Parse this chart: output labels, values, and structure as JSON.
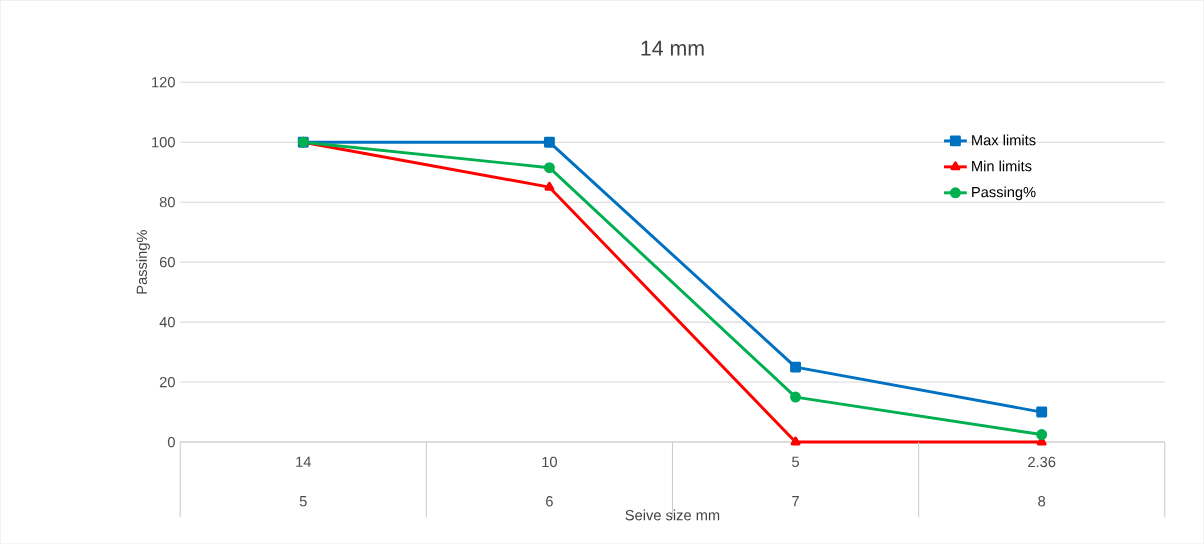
{
  "chart_data": {
    "type": "line",
    "title": "14 mm",
    "xlabel": "Seive size mm",
    "ylabel": "Passing%",
    "categories": [
      "14",
      "10",
      "5",
      "2.36"
    ],
    "annotations": [
      "5",
      "6",
      "7",
      "8"
    ],
    "series": [
      {
        "name": "Max limits",
        "color": "#0070c0",
        "marker": "square",
        "values": [
          100,
          100,
          25,
          10
        ]
      },
      {
        "name": "Min limits",
        "color": "#ff0000",
        "marker": "triangle",
        "values": [
          100,
          85,
          0,
          0
        ]
      },
      {
        "name": "Passing%",
        "color": "#00b050",
        "marker": "circle",
        "values": [
          100,
          91.5,
          15,
          2.5
        ]
      }
    ],
    "ylim": [
      0,
      120
    ],
    "yticks": [
      0,
      20,
      40,
      60,
      80,
      100,
      120
    ],
    "grid": "y",
    "legend": "right",
    "line_style": "solid"
  }
}
